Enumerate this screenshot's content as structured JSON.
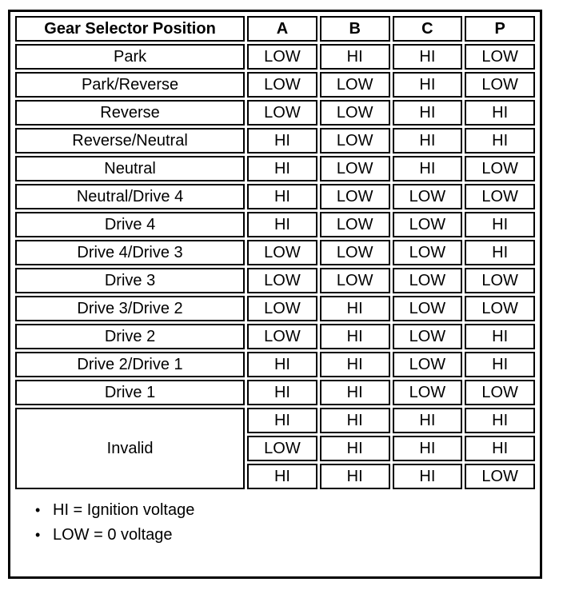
{
  "document": {
    "table": {
      "headers": {
        "position": "Gear Selector Position",
        "a": "A",
        "b": "B",
        "c": "C",
        "p": "P"
      },
      "rows": [
        {
          "label": "Park",
          "values": [
            "LOW",
            "HI",
            "HI",
            "LOW"
          ]
        },
        {
          "label": "Park/Reverse",
          "values": [
            "LOW",
            "LOW",
            "HI",
            "LOW"
          ]
        },
        {
          "label": "Reverse",
          "values": [
            "LOW",
            "LOW",
            "HI",
            "HI"
          ]
        },
        {
          "label": "Reverse/Neutral",
          "values": [
            "HI",
            "LOW",
            "HI",
            "HI"
          ]
        },
        {
          "label": "Neutral",
          "values": [
            "HI",
            "LOW",
            "HI",
            "LOW"
          ]
        },
        {
          "label": "Neutral/Drive 4",
          "values": [
            "HI",
            "LOW",
            "LOW",
            "LOW"
          ]
        },
        {
          "label": "Drive 4",
          "values": [
            "HI",
            "LOW",
            "LOW",
            "HI"
          ]
        },
        {
          "label": "Drive 4/Drive 3",
          "values": [
            "LOW",
            "LOW",
            "LOW",
            "HI"
          ]
        },
        {
          "label": "Drive 3",
          "values": [
            "LOW",
            "LOW",
            "LOW",
            "LOW"
          ]
        },
        {
          "label": "Drive 3/Drive 2",
          "values": [
            "LOW",
            "HI",
            "LOW",
            "LOW"
          ]
        },
        {
          "label": "Drive 2",
          "values": [
            "LOW",
            "HI",
            "LOW",
            "HI"
          ]
        },
        {
          "label": "Drive 2/Drive 1",
          "values": [
            "HI",
            "HI",
            "LOW",
            "HI"
          ]
        },
        {
          "label": "Drive 1",
          "values": [
            "HI",
            "HI",
            "LOW",
            "LOW"
          ]
        }
      ],
      "invalid": {
        "label": "Invalid",
        "rows": [
          [
            "HI",
            "HI",
            "HI",
            "HI"
          ],
          [
            "LOW",
            "HI",
            "HI",
            "HI"
          ],
          [
            "HI",
            "HI",
            "HI",
            "LOW"
          ]
        ]
      }
    },
    "notes": [
      {
        "bullet": "•",
        "text": "HI = Ignition voltage"
      },
      {
        "bullet": "•",
        "text": "LOW = 0 voltage"
      }
    ]
  }
}
